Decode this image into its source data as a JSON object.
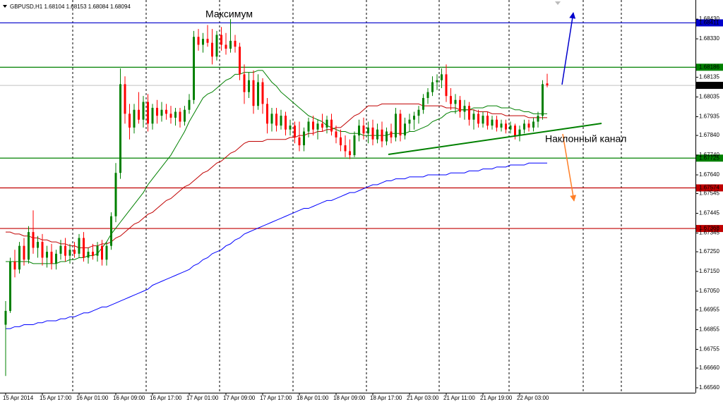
{
  "chart_data": {
    "type": "candlestick",
    "title": "GBPUSD,H1",
    "annotations": [
      "Максимум",
      "Наклонный канал"
    ],
    "up_color": "#008000",
    "down_color": "#ff0000",
    "ylim": [
      1.66535,
      1.68527
    ],
    "yticks": [
      {
        "value": 1.6843,
        "label": "1.68430"
      },
      {
        "value": 1.6833,
        "label": "1.68330"
      },
      1.68135,
      1.68035,
      1.67935,
      {
        "value": 1.6784,
        "label": "1.67840"
      },
      {
        "value": 1.6774,
        "label": "1.67740"
      },
      {
        "value": 1.6764,
        "label": "1.67640"
      },
      1.67545,
      1.67445,
      1.67345,
      {
        "value": 1.6725,
        "label": "1.67250"
      },
      {
        "value": 1.6715,
        "label": "1.67150"
      },
      {
        "value": 1.6705,
        "label": "1.67050"
      },
      1.66955,
      1.66855,
      1.66755,
      {
        "value": 1.6666,
        "label": "1.66660"
      },
      {
        "value": 1.6656,
        "label": "1.66560"
      }
    ],
    "categories": [
      "15 Apr 2014",
      null,
      null,
      null,
      null,
      null,
      null,
      null,
      "15 Apr 17:00",
      null,
      null,
      null,
      null,
      null,
      null,
      null,
      "16 Apr 01:00",
      null,
      null,
      null,
      null,
      null,
      null,
      null,
      "16 Apr 09:00",
      null,
      null,
      null,
      null,
      null,
      null,
      null,
      "16 Apr 17:00",
      null,
      null,
      null,
      null,
      null,
      null,
      null,
      "17 Apr 01:00",
      null,
      null,
      null,
      null,
      null,
      null,
      null,
      "17 Apr 09:00",
      null,
      null,
      null,
      null,
      null,
      null,
      null,
      "17 Apr 17:00",
      null,
      null,
      null,
      null,
      null,
      null,
      null,
      "18 Apr 01:00",
      null,
      null,
      null,
      null,
      null,
      null,
      null,
      "18 Apr 09:00",
      null,
      null,
      null,
      null,
      null,
      null,
      null,
      "18 Apr 17:00",
      null,
      null,
      null,
      null,
      null,
      null,
      null,
      "21 Apr 03:00",
      null,
      null,
      null,
      null,
      null,
      null,
      null,
      "21 Apr 11:00",
      null,
      null,
      null,
      null,
      null,
      null,
      null,
      "21 Apr 19:00",
      null,
      null,
      null,
      null,
      null,
      null,
      null,
      "22 Apr 03:00",
      null,
      null,
      null,
      null,
      null,
      null
    ],
    "candles": [
      [
        1.6688,
        1.67,
        1.6662,
        1.6695
      ],
      [
        1.6695,
        1.6722,
        1.6694,
        1.672
      ],
      [
        1.672,
        1.6726,
        1.6712,
        1.6716
      ],
      [
        1.6716,
        1.673,
        1.6714,
        1.6728
      ],
      [
        1.6728,
        1.6732,
        1.6718,
        1.6721
      ],
      [
        1.6721,
        1.6738,
        1.6719,
        1.6735
      ],
      [
        1.6735,
        1.6746,
        1.6724,
        1.6727
      ],
      [
        1.6727,
        1.6733,
        1.6722,
        1.673
      ],
      [
        1.673,
        1.6734,
        1.6718,
        1.6722
      ],
      [
        1.6722,
        1.6728,
        1.6717,
        1.6725
      ],
      [
        1.6725,
        1.6729,
        1.6716,
        1.6719
      ],
      [
        1.6719,
        1.6726,
        1.6716,
        1.6724
      ],
      [
        1.6724,
        1.6731,
        1.6721,
        1.6728
      ],
      [
        1.6728,
        1.6732,
        1.672,
        1.6723
      ],
      [
        1.6723,
        1.6729,
        1.6719,
        1.6726
      ],
      [
        1.6726,
        1.673,
        1.6722,
        1.6724
      ],
      [
        1.6724,
        1.6734,
        1.6722,
        1.6732
      ],
      [
        1.6732,
        1.6735,
        1.672,
        1.6722
      ],
      [
        1.6722,
        1.6727,
        1.6719,
        1.6725
      ],
      [
        1.6725,
        1.6729,
        1.6721,
        1.6723
      ],
      [
        1.6723,
        1.673,
        1.672,
        1.6728
      ],
      [
        1.6728,
        1.6731,
        1.6718,
        1.6721
      ],
      [
        1.6721,
        1.673,
        1.6718,
        1.6728
      ],
      [
        1.6728,
        1.6745,
        1.6726,
        1.6743
      ],
      [
        1.6743,
        1.677,
        1.674,
        1.6765
      ],
      [
        1.6765,
        1.6818,
        1.6762,
        1.681
      ],
      [
        1.681,
        1.6814,
        1.679,
        1.6795
      ],
      [
        1.6795,
        1.68,
        1.6782,
        1.6788
      ],
      [
        1.6788,
        1.68,
        1.6785,
        1.6797
      ],
      [
        1.6797,
        1.6806,
        1.679,
        1.6792
      ],
      [
        1.6792,
        1.6804,
        1.6788,
        1.6801
      ],
      [
        1.6801,
        1.6805,
        1.6786,
        1.679
      ],
      [
        1.679,
        1.68,
        1.6787,
        1.6798
      ],
      [
        1.6798,
        1.6802,
        1.679,
        1.6794
      ],
      [
        1.6794,
        1.6801,
        1.6791,
        1.6797
      ],
      [
        1.6797,
        1.68,
        1.6792,
        1.6795
      ],
      [
        1.6795,
        1.6799,
        1.679,
        1.6793
      ],
      [
        1.6793,
        1.6798,
        1.6789,
        1.6796
      ],
      [
        1.6796,
        1.6798,
        1.6788,
        1.6791
      ],
      [
        1.6791,
        1.6799,
        1.6789,
        1.6797
      ],
      [
        1.6797,
        1.6805,
        1.6795,
        1.6802
      ],
      [
        1.6802,
        1.6837,
        1.68,
        1.6834
      ],
      [
        1.6834,
        1.6838,
        1.6827,
        1.683
      ],
      [
        1.683,
        1.6836,
        1.6826,
        1.6833
      ],
      [
        1.6833,
        1.684,
        1.6829,
        1.6831
      ],
      [
        1.6831,
        1.6838,
        1.682,
        1.6824
      ],
      [
        1.6824,
        1.6837,
        1.6822,
        1.6835
      ],
      [
        1.6835,
        1.6839,
        1.6827,
        1.683
      ],
      [
        1.683,
        1.6836,
        1.6825,
        1.6828
      ],
      [
        1.6828,
        1.6843,
        1.6826,
        1.6832
      ],
      [
        1.6832,
        1.6835,
        1.6826,
        1.6829
      ],
      [
        1.6829,
        1.6831,
        1.6812,
        1.6815
      ],
      [
        1.6815,
        1.682,
        1.68,
        1.6806
      ],
      [
        1.6806,
        1.6816,
        1.6803,
        1.6812
      ],
      [
        1.6812,
        1.6817,
        1.6795,
        1.6799
      ],
      [
        1.6799,
        1.6815,
        1.6797,
        1.6811
      ],
      [
        1.6811,
        1.6813,
        1.6795,
        1.68
      ],
      [
        1.68,
        1.6803,
        1.6785,
        1.679
      ],
      [
        1.679,
        1.6798,
        1.6786,
        1.6795
      ],
      [
        1.6795,
        1.6798,
        1.6786,
        1.6789
      ],
      [
        1.6789,
        1.6797,
        1.6787,
        1.6794
      ],
      [
        1.6794,
        1.6796,
        1.6784,
        1.6787
      ],
      [
        1.6787,
        1.6792,
        1.6784,
        1.6789
      ],
      [
        1.6789,
        1.6791,
        1.678,
        1.6783
      ],
      [
        1.6783,
        1.6791,
        1.6776,
        1.6779
      ],
      [
        1.6779,
        1.6788,
        1.6776,
        1.6786
      ],
      [
        1.6786,
        1.6793,
        1.6783,
        1.6791
      ],
      [
        1.6791,
        1.6794,
        1.6784,
        1.6787
      ],
      [
        1.6787,
        1.6792,
        1.6782,
        1.679
      ],
      [
        1.679,
        1.6795,
        1.6786,
        1.6788
      ],
      [
        1.6788,
        1.6794,
        1.6785,
        1.6792
      ],
      [
        1.6792,
        1.6795,
        1.6784,
        1.6786
      ],
      [
        1.6786,
        1.6789,
        1.678,
        1.6783
      ],
      [
        1.6783,
        1.6787,
        1.6776,
        1.6779
      ],
      [
        1.6779,
        1.6784,
        1.6773,
        1.6776
      ],
      [
        1.6776,
        1.6782,
        1.6772,
        1.6774
      ],
      [
        1.6774,
        1.6786,
        1.6773,
        1.6784
      ],
      [
        1.6784,
        1.6792,
        1.6781,
        1.6789
      ],
      [
        1.6789,
        1.6793,
        1.6782,
        1.6785
      ],
      [
        1.6785,
        1.6791,
        1.678,
        1.6788
      ],
      [
        1.6788,
        1.6792,
        1.6779,
        1.6782
      ],
      [
        1.6782,
        1.679,
        1.678,
        1.6787
      ],
      [
        1.6787,
        1.6791,
        1.6778,
        1.6781
      ],
      [
        1.6781,
        1.6788,
        1.6779,
        1.6786
      ],
      [
        1.6786,
        1.679,
        1.678,
        1.6783
      ],
      [
        1.6783,
        1.6798,
        1.6781,
        1.6795
      ],
      [
        1.6795,
        1.6797,
        1.6781,
        1.6784
      ],
      [
        1.6784,
        1.6793,
        1.6782,
        1.679
      ],
      [
        1.679,
        1.6795,
        1.6786,
        1.6792
      ],
      [
        1.6792,
        1.6796,
        1.6787,
        1.6794
      ],
      [
        1.6794,
        1.6799,
        1.679,
        1.6797
      ],
      [
        1.6797,
        1.6805,
        1.6795,
        1.6803
      ],
      [
        1.6803,
        1.6808,
        1.68,
        1.6806
      ],
      [
        1.6806,
        1.6814,
        1.6804,
        1.6811
      ],
      [
        1.6811,
        1.6815,
        1.6807,
        1.6812
      ],
      [
        1.6812,
        1.6818,
        1.6808,
        1.6815
      ],
      [
        1.6815,
        1.682,
        1.6801,
        1.6804
      ],
      [
        1.6804,
        1.6808,
        1.6797,
        1.68
      ],
      [
        1.68,
        1.6805,
        1.6795,
        1.6802
      ],
      [
        1.6802,
        1.6804,
        1.6793,
        1.6796
      ],
      [
        1.6796,
        1.6802,
        1.6792,
        1.6799
      ],
      [
        1.6799,
        1.6801,
        1.6789,
        1.6792
      ],
      [
        1.6792,
        1.6797,
        1.6787,
        1.6795
      ],
      [
        1.6795,
        1.6797,
        1.6788,
        1.679
      ],
      [
        1.679,
        1.6796,
        1.6788,
        1.6794
      ],
      [
        1.6794,
        1.6796,
        1.6787,
        1.6789
      ],
      [
        1.6789,
        1.6794,
        1.6787,
        1.6792
      ],
      [
        1.6792,
        1.6794,
        1.6786,
        1.6788
      ],
      [
        1.6788,
        1.6792,
        1.6786,
        1.679
      ],
      [
        1.679,
        1.6792,
        1.6785,
        1.6787
      ],
      [
        1.6787,
        1.6791,
        1.6785,
        1.6789
      ],
      [
        1.6789,
        1.679,
        1.6782,
        1.6784
      ],
      [
        1.6784,
        1.6789,
        1.6781,
        1.6787
      ],
      [
        1.6787,
        1.6792,
        1.6785,
        1.679
      ],
      [
        1.679,
        1.6792,
        1.6786,
        1.6788
      ],
      [
        1.6788,
        1.6793,
        1.6786,
        1.6791
      ],
      [
        1.6791,
        1.6796,
        1.6788,
        1.6794
      ],
      [
        1.6794,
        1.6812,
        1.6792,
        1.681
      ],
      [
        1.68104,
        1.68153,
        1.68084,
        1.68094
      ]
    ],
    "moving_averages": [
      {
        "color": "#0000ff",
        "values": [
          1.6686,
          1.6686,
          1.6687,
          1.6687,
          1.6688,
          1.6688,
          1.6688,
          1.6689,
          1.6689,
          1.669,
          1.669,
          1.669,
          1.6691,
          1.6691,
          1.6692,
          1.6692,
          1.6693,
          1.6694,
          1.6694,
          1.6695,
          1.6696,
          1.6697,
          1.6697,
          1.6698,
          1.6699,
          1.67,
          1.6701,
          1.6702,
          1.6703,
          1.6704,
          1.6705,
          1.6706,
          1.6708,
          1.6709,
          1.671,
          1.6711,
          1.6712,
          1.6713,
          1.6714,
          1.6715,
          1.6716,
          1.6718,
          1.6719,
          1.6721,
          1.6722,
          1.6724,
          1.6725,
          1.6726,
          1.6728,
          1.6729,
          1.6731,
          1.6732,
          1.6734,
          1.6735,
          1.6736,
          1.6737,
          1.6738,
          1.6739,
          1.674,
          1.6741,
          1.6742,
          1.6743,
          1.6744,
          1.6745,
          1.6746,
          1.6747,
          1.6747,
          1.6748,
          1.6749,
          1.675,
          1.6751,
          1.6751,
          1.6752,
          1.6753,
          1.6754,
          1.6755,
          1.6755,
          1.6756,
          1.6757,
          1.6758,
          1.6759,
          1.6759,
          1.676,
          1.6761,
          1.6761,
          1.6762,
          1.6762,
          1.6762,
          1.6763,
          1.6763,
          1.6763,
          1.6763,
          1.6764,
          1.6764,
          1.6764,
          1.6764,
          1.6764,
          1.6765,
          1.6765,
          1.6765,
          1.6765,
          1.6766,
          1.6766,
          1.6766,
          1.6767,
          1.6767,
          1.6767,
          1.6768,
          1.6768,
          1.6768,
          1.6769,
          1.6769,
          1.6769,
          1.6769,
          1.677,
          1.677,
          1.677,
          1.677,
          1.677
        ]
      },
      {
        "color": "#c00000",
        "values": [
          1.6735,
          1.6735,
          1.6734,
          1.6734,
          1.6733,
          1.6733,
          1.6732,
          1.6732,
          1.6731,
          1.6731,
          1.673,
          1.673,
          1.6729,
          1.6729,
          1.6728,
          1.6728,
          1.6727,
          1.6727,
          1.6727,
          1.6728,
          1.6728,
          1.6729,
          1.6729,
          1.673,
          1.6732,
          1.6733,
          1.6735,
          1.6737,
          1.6739,
          1.674,
          1.6742,
          1.6744,
          1.6745,
          1.6747,
          1.6749,
          1.6751,
          1.6752,
          1.6754,
          1.6756,
          1.6758,
          1.6759,
          1.6761,
          1.6763,
          1.6765,
          1.6766,
          1.6768,
          1.677,
          1.6771,
          1.6773,
          1.6775,
          1.6776,
          1.6778,
          1.678,
          1.6781,
          1.6781,
          1.6781,
          1.6781,
          1.6782,
          1.6782,
          1.6782,
          1.6782,
          1.6782,
          1.6783,
          1.6783,
          1.6784,
          1.6784,
          1.6785,
          1.6785,
          1.6786,
          1.6786,
          1.6787,
          1.6787,
          1.6788,
          1.6788,
          1.679,
          1.6792,
          1.6794,
          1.6795,
          1.6797,
          1.6799,
          1.6799,
          1.6799,
          1.68,
          1.68,
          1.68,
          1.68,
          1.68,
          1.68,
          1.68,
          1.68,
          1.68,
          1.6799,
          1.6799,
          1.6799,
          1.6799,
          1.6799,
          1.6798,
          1.6798,
          1.6798,
          1.6797,
          1.6797,
          1.6797,
          1.6797,
          1.6796,
          1.6796,
          1.6796,
          1.6795,
          1.6795,
          1.6795,
          1.6794,
          1.6794,
          1.6794,
          1.6794,
          1.6794,
          1.6793,
          1.6793,
          1.6793,
          1.6793,
          1.6793
        ]
      },
      {
        "color": "#008000",
        "values": [
          1.672,
          1.672,
          1.672,
          1.672,
          1.672,
          1.672,
          1.6719,
          1.6719,
          1.6719,
          1.6719,
          1.6719,
          1.6719,
          1.672,
          1.672,
          1.6721,
          1.6721,
          1.6722,
          1.6722,
          1.6723,
          1.6723,
          1.6724,
          1.6727,
          1.673,
          1.6734,
          1.6737,
          1.674,
          1.6743,
          1.6746,
          1.6749,
          1.6752,
          1.6755,
          1.6759,
          1.6762,
          1.6765,
          1.6768,
          1.6771,
          1.6774,
          1.6778,
          1.6782,
          1.6786,
          1.6791,
          1.6795,
          1.6799,
          1.6803,
          1.6805,
          1.6806,
          1.6808,
          1.681,
          1.6812,
          1.6813,
          1.6815,
          1.6815,
          1.6816,
          1.6816,
          1.6816,
          1.6817,
          1.6817,
          1.6814,
          1.6811,
          1.6809,
          1.6806,
          1.6804,
          1.6802,
          1.68,
          1.6798,
          1.6796,
          1.6794,
          1.6793,
          1.6792,
          1.6791,
          1.6789,
          1.6788,
          1.6787,
          1.6786,
          1.6786,
          1.6785,
          1.6785,
          1.6785,
          1.6784,
          1.6784,
          1.6784,
          1.6784,
          1.6784,
          1.6784,
          1.6785,
          1.6785,
          1.6785,
          1.6785,
          1.6786,
          1.6786,
          1.6787,
          1.6788,
          1.6789,
          1.6791,
          1.6792,
          1.6793,
          1.6795,
          1.6796,
          1.6796,
          1.6797,
          1.6797,
          1.6797,
          1.6798,
          1.6798,
          1.6798,
          1.6799,
          1.6799,
          1.6799,
          1.6798,
          1.6798,
          1.6798,
          1.6797,
          1.6797,
          1.6796,
          1.6796,
          1.6795,
          1.6795,
          1.6795,
          1.6795
        ]
      }
    ],
    "levels": [
      {
        "value": 1.68411,
        "color": "#0000cc"
      },
      {
        "value": 1.68186,
        "color": "#008000"
      },
      {
        "value": 1.67725,
        "color": "#008000"
      },
      {
        "value": 1.67574,
        "color": "#c00000"
      },
      {
        "value": 1.67368,
        "color": "#c00000"
      }
    ]
  }
}
